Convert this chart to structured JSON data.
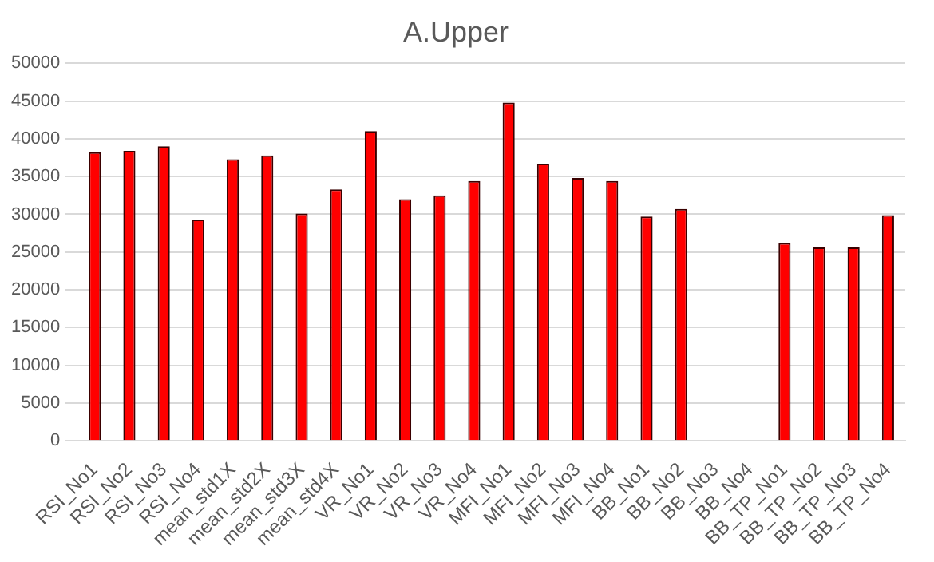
{
  "chart_data": {
    "type": "bar",
    "title": "A.Upper",
    "categories": [
      "RSI_No1",
      "RSI_No2",
      "RSI_No3",
      "RSI_No4",
      "mean_std1X",
      "mean_std2X",
      "mean_std3X",
      "mean_std4X",
      "VR_No1",
      "VR_No2",
      "VR_No3",
      "VR_No4",
      "MFI_No1",
      "MFI_No2",
      "MFI_No3",
      "MFI_No4",
      "BB_No1",
      "BB_No2",
      "BB_No3",
      "BB_No4",
      "BB_TP_No1",
      "BB_TP_No2",
      "BB_TP_No3",
      "BB_TP_No4"
    ],
    "values": [
      38200,
      38400,
      39000,
      29300,
      37300,
      37800,
      30100,
      33300,
      41000,
      32000,
      32500,
      34400,
      44800,
      36700,
      34800,
      34400,
      29700,
      30700,
      null,
      null,
      26200,
      25600,
      25600,
      29900
    ],
    "color": "#ff0000",
    "ylim": [
      0,
      50000
    ],
    "yticks": [
      0,
      5000,
      10000,
      15000,
      20000,
      25000,
      30000,
      35000,
      40000,
      45000,
      50000
    ],
    "grid": "y"
  }
}
